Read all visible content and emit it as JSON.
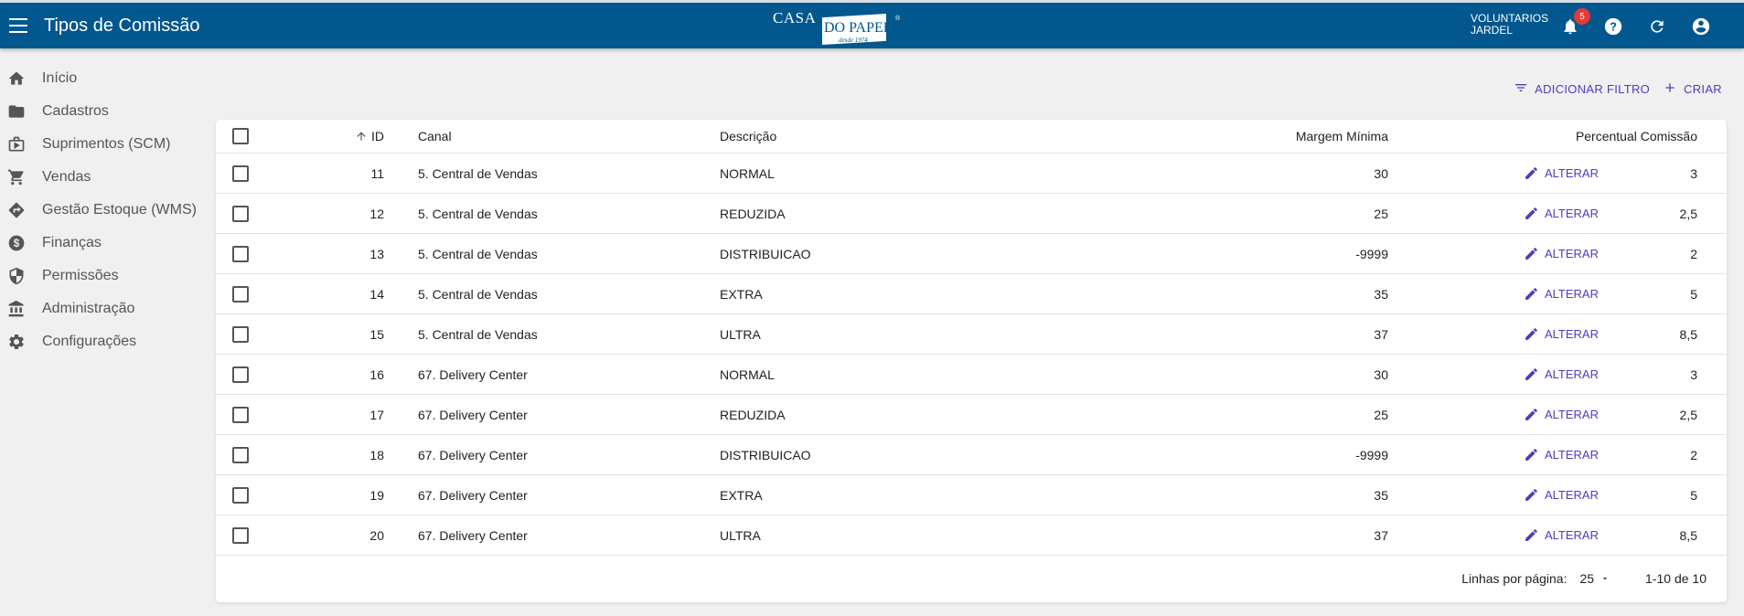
{
  "header": {
    "title": "Tipos de Comissão",
    "logo": {
      "top": "CASA",
      "main": "DO PAPEL",
      "since": "desde 1974",
      "reg": "®"
    },
    "user": {
      "line1": "VOLUNTARIOS",
      "line2": "JARDEL"
    },
    "notifications_count": "5",
    "color": "#02578f"
  },
  "sidebar": {
    "items": [
      {
        "label": "Início",
        "icon": "home-icon"
      },
      {
        "label": "Cadastros",
        "icon": "folder-icon"
      },
      {
        "label": "Suprimentos (SCM)",
        "icon": "briefcase-icon"
      },
      {
        "label": "Vendas",
        "icon": "cart-icon"
      },
      {
        "label": "Gestão Estoque (WMS)",
        "icon": "directions-icon"
      },
      {
        "label": "Finanças",
        "icon": "dollar-icon"
      },
      {
        "label": "Permissões",
        "icon": "shield-icon"
      },
      {
        "label": "Administração",
        "icon": "bank-icon"
      },
      {
        "label": "Configurações",
        "icon": "gear-icon"
      }
    ]
  },
  "actions": {
    "filter": "ADICIONAR FILTRO",
    "create": "CRIAR"
  },
  "table": {
    "columns": {
      "id": "ID",
      "canal": "Canal",
      "descricao": "Descrição",
      "margem": "Margem Mínima",
      "percentual": "Percentual Comissão"
    },
    "edit_label": "ALTERAR",
    "rows": [
      {
        "id": "11",
        "canal": "5. Central de Vendas",
        "descricao": "NORMAL",
        "margem": "30",
        "percentual": "3"
      },
      {
        "id": "12",
        "canal": "5. Central de Vendas",
        "descricao": "REDUZIDA",
        "margem": "25",
        "percentual": "2,5"
      },
      {
        "id": "13",
        "canal": "5. Central de Vendas",
        "descricao": "DISTRIBUICAO",
        "margem": "-9999",
        "percentual": "2"
      },
      {
        "id": "14",
        "canal": "5. Central de Vendas",
        "descricao": "EXTRA",
        "margem": "35",
        "percentual": "5"
      },
      {
        "id": "15",
        "canal": "5. Central de Vendas",
        "descricao": "ULTRA",
        "margem": "37",
        "percentual": "8,5"
      },
      {
        "id": "16",
        "canal": "67. Delivery Center",
        "descricao": "NORMAL",
        "margem": "30",
        "percentual": "3"
      },
      {
        "id": "17",
        "canal": "67. Delivery Center",
        "descricao": "REDUZIDA",
        "margem": "25",
        "percentual": "2,5"
      },
      {
        "id": "18",
        "canal": "67. Delivery Center",
        "descricao": "DISTRIBUICAO",
        "margem": "-9999",
        "percentual": "2"
      },
      {
        "id": "19",
        "canal": "67. Delivery Center",
        "descricao": "EXTRA",
        "margem": "35",
        "percentual": "5"
      },
      {
        "id": "20",
        "canal": "67. Delivery Center",
        "descricao": "ULTRA",
        "margem": "37",
        "percentual": "8,5"
      }
    ]
  },
  "pagination": {
    "rows_per_page_label": "Linhas por página:",
    "rows_per_page": "25",
    "range": "1-10 de 10"
  }
}
